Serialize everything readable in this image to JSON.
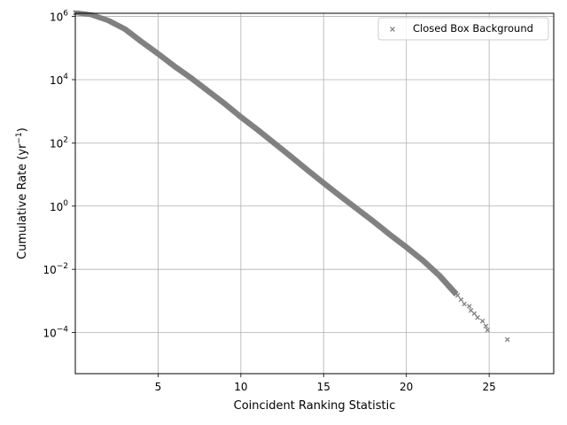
{
  "chart_data": {
    "type": "scatter",
    "title": "",
    "xlabel": "Coincident Ranking Statistic",
    "ylabel": {
      "prefix": "Cumulative Rate (yr",
      "superscript": "−1",
      "suffix": ")"
    },
    "xlim": [
      0.0,
      28.9
    ],
    "ylim_log10": [
      -5.3,
      6.1
    ],
    "y_scale": "log",
    "x_ticks": [
      {
        "value": 5,
        "label": "5"
      },
      {
        "value": 10,
        "label": "10"
      },
      {
        "value": 15,
        "label": "15"
      },
      {
        "value": 20,
        "label": "20"
      },
      {
        "value": 25,
        "label": "25"
      }
    ],
    "y_ticks": [
      {
        "exp": 6,
        "base": "10",
        "sup": "6"
      },
      {
        "exp": 4,
        "base": "10",
        "sup": "4"
      },
      {
        "exp": 2,
        "base": "10",
        "sup": "2"
      },
      {
        "exp": 0,
        "base": "10",
        "sup": "0"
      },
      {
        "exp": -2,
        "base": "10",
        "sup": "−2"
      },
      {
        "exp": -4,
        "base": "10",
        "sup": "−4"
      }
    ],
    "grid": true,
    "legend_position": "top-right",
    "series": [
      {
        "name": "Closed Box Background",
        "color": "#808080",
        "marker": "x",
        "curve": [
          {
            "x": 0.0,
            "log10y": 6.12
          },
          {
            "x": 1.0,
            "log10y": 6.05
          },
          {
            "x": 2.0,
            "log10y": 5.87
          },
          {
            "x": 3.0,
            "log10y": 5.6
          },
          {
            "x": 4.0,
            "log10y": 5.2
          },
          {
            "x": 5.0,
            "log10y": 4.82
          },
          {
            "x": 6.0,
            "log10y": 4.42
          },
          {
            "x": 7.0,
            "log10y": 4.05
          },
          {
            "x": 8.0,
            "log10y": 3.65
          },
          {
            "x": 9.0,
            "log10y": 3.25
          },
          {
            "x": 10.0,
            "log10y": 2.82
          },
          {
            "x": 11.0,
            "log10y": 2.42
          },
          {
            "x": 12.0,
            "log10y": 2.0
          },
          {
            "x": 13.0,
            "log10y": 1.58
          },
          {
            "x": 14.0,
            "log10y": 1.15
          },
          {
            "x": 15.0,
            "log10y": 0.73
          },
          {
            "x": 16.0,
            "log10y": 0.32
          },
          {
            "x": 17.0,
            "log10y": -0.08
          },
          {
            "x": 18.0,
            "log10y": -0.48
          },
          {
            "x": 19.0,
            "log10y": -0.9
          },
          {
            "x": 20.0,
            "log10y": -1.3
          },
          {
            "x": 21.0,
            "log10y": -1.72
          },
          {
            "x": 22.0,
            "log10y": -2.2
          },
          {
            "x": 22.6,
            "log10y": -2.55
          },
          {
            "x": 23.0,
            "log10y": -2.78
          }
        ],
        "tail_points": [
          {
            "x": 23.1,
            "y": 0.0015
          },
          {
            "x": 23.3,
            "y": 0.0011
          },
          {
            "x": 23.5,
            "y": 0.0008
          },
          {
            "x": 23.8,
            "y": 0.00068
          },
          {
            "x": 23.9,
            "y": 0.0005
          },
          {
            "x": 24.1,
            "y": 0.0004
          },
          {
            "x": 24.3,
            "y": 0.0003
          },
          {
            "x": 24.6,
            "y": 0.00023
          },
          {
            "x": 24.8,
            "y": 0.00016
          },
          {
            "x": 24.9,
            "y": 0.00012
          },
          {
            "x": 26.1,
            "y": 6e-05
          }
        ]
      }
    ]
  }
}
